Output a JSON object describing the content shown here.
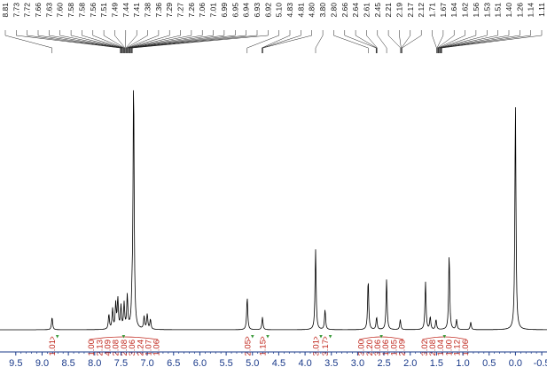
{
  "chart_data": {
    "type": "line",
    "title": "",
    "xlabel": "",
    "ylabel": "",
    "x_axis": {
      "reversed": true,
      "xlim": [
        9.8,
        -0.6
      ],
      "tick_labels": [
        "9.5",
        "9.0",
        "8.5",
        "8.0",
        "7.5",
        "7.0",
        "6.5",
        "6.0",
        "5.5",
        "5.0",
        "4.5",
        "4.0",
        "3.5",
        "3.0",
        "2.5",
        "2.0",
        "1.5",
        "1.0",
        "0.5",
        "0.0",
        "-0.5"
      ],
      "tick_values": [
        9.5,
        9.0,
        8.5,
        8.0,
        7.5,
        7.0,
        6.5,
        6.0,
        5.5,
        5.0,
        4.5,
        4.0,
        3.5,
        3.0,
        2.5,
        2.0,
        1.5,
        1.0,
        0.5,
        0.0,
        -0.5
      ],
      "color": "#1a3a8a"
    },
    "spectrum_color": "#000000",
    "peak_labels": [
      "8.81",
      "7.73",
      "7.72",
      "7.66",
      "7.63",
      "7.60",
      "7.58",
      "7.58",
      "7.56",
      "7.51",
      "7.49",
      "7.44",
      "7.41",
      "7.38",
      "7.36",
      "7.29",
      "7.27",
      "7.26",
      "7.06",
      "7.01",
      "6.99",
      "6.95",
      "6.94",
      "6.93",
      "6.92",
      "5.10",
      "4.83",
      "4.81",
      "4.80",
      "3.80",
      "2.80",
      "2.66",
      "2.64",
      "2.61",
      "2.45",
      "2.21",
      "2.19",
      "2.17",
      "2.12",
      "1.71",
      "1.67",
      "1.64",
      "1.62",
      "1.56",
      "1.53",
      "1.51",
      "1.40",
      "1.26",
      "1.14",
      "1.11"
    ],
    "peak_label_anchors": [
      {
        "ppm": 8.81,
        "first": 0,
        "count": 1
      },
      {
        "ppm": 7.4,
        "first": 1,
        "count": 24
      },
      {
        "ppm": 5.1,
        "first": 25,
        "count": 1
      },
      {
        "ppm": 4.81,
        "first": 26,
        "count": 3
      },
      {
        "ppm": 3.8,
        "first": 29,
        "count": 1
      },
      {
        "ppm": 2.8,
        "first": 30,
        "count": 1
      },
      {
        "ppm": 2.64,
        "first": 31,
        "count": 3
      },
      {
        "ppm": 2.45,
        "first": 34,
        "count": 1
      },
      {
        "ppm": 2.17,
        "first": 35,
        "count": 4
      },
      {
        "ppm": 1.45,
        "first": 39,
        "count": 11
      }
    ],
    "integrals": [
      {
        "center": 8.81,
        "values": [
          "1.01"
        ]
      },
      {
        "center": 7.45,
        "values": [
          "1.00",
          "2.13",
          "4.09",
          "2.08",
          "2.08",
          "3.06",
          "2.24",
          "1.07",
          "1.06"
        ]
      },
      {
        "center": 5.1,
        "values": [
          "2.05"
        ]
      },
      {
        "center": 4.81,
        "values": [
          "1.15"
        ]
      },
      {
        "center": 3.8,
        "values": [
          "3.01"
        ]
      },
      {
        "center": 3.62,
        "values": [
          "3.17"
        ]
      },
      {
        "center": 2.55,
        "values": [
          "3.00",
          "2.20",
          "3.06",
          "1.06",
          "1.05",
          "2.09"
        ]
      },
      {
        "center": 1.35,
        "values": [
          "3.02",
          "2.08",
          "1.04",
          "1.00",
          "1.12",
          "1.06"
        ]
      }
    ],
    "integral_color": "#c0281e",
    "integral_marker_color": "#3a9a3a",
    "peaks": [
      {
        "ppm": 8.81,
        "height": 0.05
      },
      {
        "ppm": 7.73,
        "height": 0.06
      },
      {
        "ppm": 7.66,
        "height": 0.08
      },
      {
        "ppm": 7.6,
        "height": 0.1
      },
      {
        "ppm": 7.56,
        "height": 0.12
      },
      {
        "ppm": 7.5,
        "height": 0.09
      },
      {
        "ppm": 7.44,
        "height": 0.1
      },
      {
        "ppm": 7.38,
        "height": 0.13
      },
      {
        "ppm": 7.29,
        "height": 0.09
      },
      {
        "ppm": 7.26,
        "height": 1.0
      },
      {
        "ppm": 7.06,
        "height": 0.05
      },
      {
        "ppm": 7.0,
        "height": 0.06
      },
      {
        "ppm": 6.94,
        "height": 0.04
      },
      {
        "ppm": 5.1,
        "height": 0.13
      },
      {
        "ppm": 4.81,
        "height": 0.05
      },
      {
        "ppm": 3.8,
        "height": 0.32
      },
      {
        "ppm": 3.62,
        "height": 0.08
      },
      {
        "ppm": 2.8,
        "height": 0.2
      },
      {
        "ppm": 2.64,
        "height": 0.05
      },
      {
        "ppm": 2.45,
        "height": 0.2
      },
      {
        "ppm": 2.19,
        "height": 0.04
      },
      {
        "ppm": 1.71,
        "height": 0.19
      },
      {
        "ppm": 1.62,
        "height": 0.05
      },
      {
        "ppm": 1.51,
        "height": 0.04
      },
      {
        "ppm": 1.26,
        "height": 0.3
      },
      {
        "ppm": 1.12,
        "height": 0.04
      },
      {
        "ppm": 0.85,
        "height": 0.03
      },
      {
        "ppm": 0.0,
        "height": 0.9
      }
    ]
  }
}
